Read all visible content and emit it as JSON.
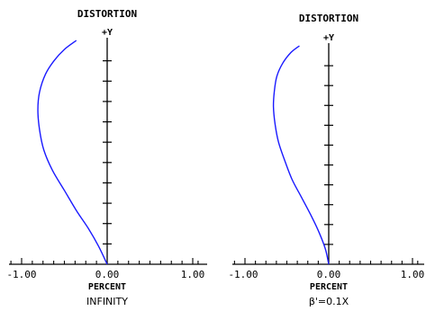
{
  "chart_data": [
    {
      "type": "line",
      "title": "DISTORTION",
      "y_axis_label": "+Y",
      "xlabel": "PERCENT",
      "condition": "INFINITY",
      "xlim": [
        -1.0,
        1.0
      ],
      "ylim": [
        0,
        1
      ],
      "x_tick_labels": [
        "-1.00",
        "0.00",
        "1.00"
      ],
      "series": [
        {
          "color": "#1a1aff",
          "x": [
            0.0,
            -0.1,
            -0.22,
            -0.36,
            -0.5,
            -0.64,
            -0.74,
            -0.79,
            -0.81,
            -0.79,
            -0.72,
            -0.62,
            -0.5,
            -0.36
          ],
          "y": [
            0.0,
            0.08,
            0.16,
            0.24,
            0.33,
            0.42,
            0.51,
            0.6,
            0.69,
            0.77,
            0.85,
            0.91,
            0.96,
            1.0
          ]
        }
      ]
    },
    {
      "type": "line",
      "title": "DISTORTION",
      "y_axis_label": "+Y",
      "xlabel": "PERCENT",
      "condition": "β'=0.1X",
      "xlim": [
        -1.0,
        1.0
      ],
      "ylim": [
        0,
        1
      ],
      "x_tick_labels": [
        "-1.00",
        "0.00",
        "1.00"
      ],
      "series": [
        {
          "color": "#1a1aff",
          "x": [
            0.0,
            -0.04,
            -0.12,
            -0.22,
            -0.33,
            -0.44,
            -0.53,
            -0.6,
            -0.64,
            -0.66,
            -0.65,
            -0.62,
            -0.55,
            -0.45,
            -0.35
          ],
          "y": [
            0.0,
            0.07,
            0.15,
            0.23,
            0.31,
            0.39,
            0.48,
            0.56,
            0.64,
            0.72,
            0.79,
            0.86,
            0.92,
            0.97,
            1.0
          ]
        }
      ]
    }
  ]
}
